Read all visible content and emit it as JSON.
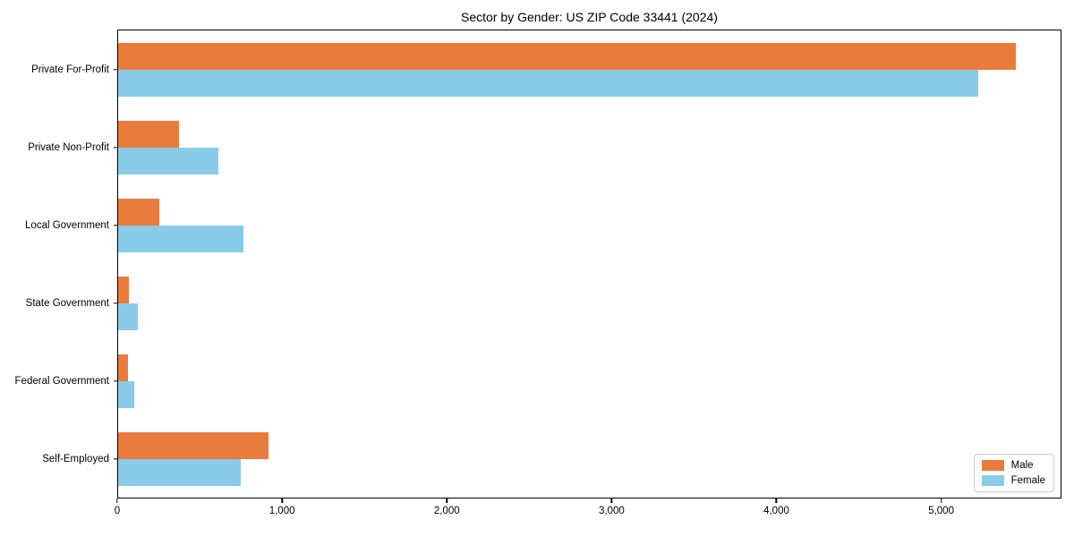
{
  "chart_data": {
    "type": "bar",
    "orientation": "horizontal",
    "title": "Sector by Gender: US ZIP Code 33441 (2024)",
    "categories": [
      "Private For-Profit",
      "Private Non-Profit",
      "Local Government",
      "State Government",
      "Federal Government",
      "Self-Employed"
    ],
    "series": [
      {
        "name": "Male",
        "color": "#e97c3c",
        "values": [
          5460,
          370,
          250,
          65,
          60,
          915
        ]
      },
      {
        "name": "Female",
        "color": "#88cce9",
        "values": [
          5230,
          610,
          760,
          120,
          100,
          745
        ]
      }
    ],
    "xlabel": "",
    "ylabel": "",
    "xlim": [
      0,
      5730
    ],
    "x_ticks": [
      0,
      1000,
      2000,
      3000,
      4000,
      5000
    ],
    "x_tick_labels": [
      "0",
      "1,000",
      "2,000",
      "3,000",
      "4,000",
      "5,000"
    ],
    "grid": false,
    "legend_position": "lower right",
    "plot_background": "#ffffff",
    "spine_color": "#000000"
  }
}
